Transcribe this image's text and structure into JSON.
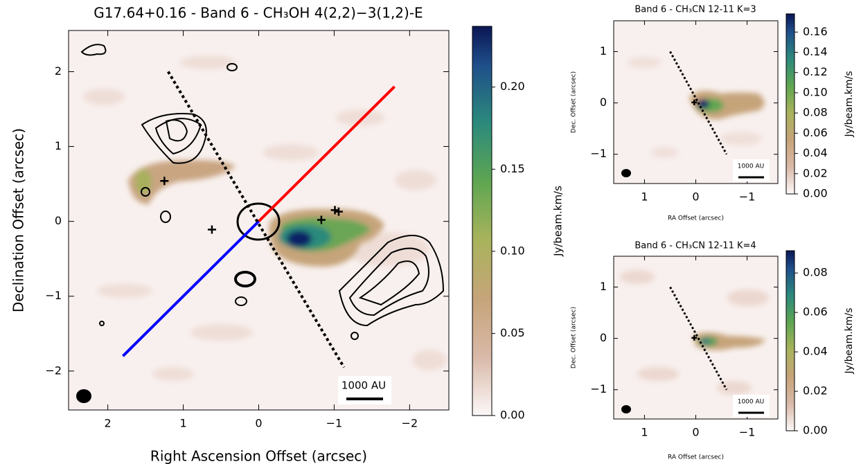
{
  "chart_data": [
    {
      "type": "map",
      "title": "G17.64+0.16 - Band 6 - CH₃OH 4(2,2)−3(1,2)-E",
      "xlabel": "Right Ascension Offset (arcsec)",
      "ylabel": "Declination Offset (arcsec)",
      "xlim": [
        2.52,
        -2.52
      ],
      "ylim": [
        -2.52,
        2.55
      ],
      "xticks": [
        2,
        1,
        0,
        {
          "value": -1,
          "label": "−1"
        },
        {
          "value": -2,
          "label": "−2"
        }
      ],
      "yticks": [
        {
          "value": -2,
          "label": "−2"
        },
        {
          "value": -1,
          "label": "−1"
        },
        0,
        1,
        2
      ],
      "colorbar": {
        "label": "Jy/beam.km/s",
        "lim": [
          0,
          0.237
        ],
        "ticks": [
          {
            "value": 0,
            "label": "0.00"
          },
          0.05,
          {
            "value": 0.1,
            "label": "0.10"
          },
          0.15,
          {
            "value": 0.2,
            "label": "0.20"
          }
        ]
      },
      "scalebar": "1000 AU",
      "series": [
        {
          "color": "#ff0000",
          "x": [
            0,
            -1.8
          ],
          "y": [
            0,
            1.8
          ]
        },
        {
          "color": "#0000ff",
          "x": [
            1.8,
            0
          ],
          "y": [
            -1.8,
            0
          ]
        },
        {
          "color": "#000000",
          "dashed": true,
          "x": [
            1.2,
            -1.13
          ],
          "y": [
            2.0,
            -1.95
          ]
        }
      ],
      "markers": {
        "x": [
          1.25,
          0.62,
          -0.83,
          -1.01,
          -1.06
        ],
        "y": [
          0.54,
          -0.11,
          0.02,
          0.15,
          0.13
        ]
      }
    },
    {
      "type": "map",
      "title": "Band 6 - CH₃CN 12-11 K=3",
      "xlabel": "RA Offset (arcsec)",
      "ylabel": "Dec. Offset (arcsec)",
      "xlim": [
        1.6,
        -1.6
      ],
      "ylim": [
        -1.57,
        1.6
      ],
      "xticks": [
        1,
        0,
        {
          "value": -1,
          "label": "−1"
        }
      ],
      "yticks": [
        {
          "value": -1,
          "label": "−1"
        },
        0,
        1
      ],
      "colorbar": {
        "label": "Jy/beam.km/s",
        "lim": [
          0,
          0.178
        ],
        "ticks": [
          {
            "value": 0,
            "label": "0.00"
          },
          0.02,
          0.04,
          0.06,
          0.08,
          {
            "value": 0.1,
            "label": "0.10"
          },
          0.12,
          0.14,
          0.16
        ]
      },
      "scalebar": "1000 AU",
      "series": [
        {
          "color": "#000000",
          "dashed": true,
          "x": [
            0.5,
            -0.6
          ],
          "y": [
            1.0,
            -1.0
          ]
        }
      ],
      "markers": {
        "x": [
          0.03
        ],
        "y": [
          0.01
        ]
      }
    },
    {
      "type": "map",
      "title": "Band 6 - CH₃CN 12-11 K=4",
      "xlabel": "RA Offset (arcsec)",
      "ylabel": "Dec. Offset (arcsec)",
      "xlim": [
        1.6,
        -1.6
      ],
      "ylim": [
        -1.57,
        1.6
      ],
      "xticks": [
        1,
        0,
        {
          "value": -1,
          "label": "−1"
        }
      ],
      "yticks": [
        {
          "value": -1,
          "label": "−1"
        },
        0,
        1
      ],
      "colorbar": {
        "label": "Jy/beam.km/s",
        "lim": [
          0,
          0.0913
        ],
        "ticks": [
          {
            "value": 0,
            "label": "0.00"
          },
          0.02,
          0.04,
          0.06,
          0.08
        ]
      },
      "scalebar": "1000 AU",
      "series": [
        {
          "color": "#000000",
          "dashed": true,
          "x": [
            0.5,
            -0.6
          ],
          "y": [
            1.0,
            -1.0
          ]
        }
      ],
      "markers": {
        "x": [
          0.03
        ],
        "y": [
          0.01
        ]
      }
    }
  ]
}
